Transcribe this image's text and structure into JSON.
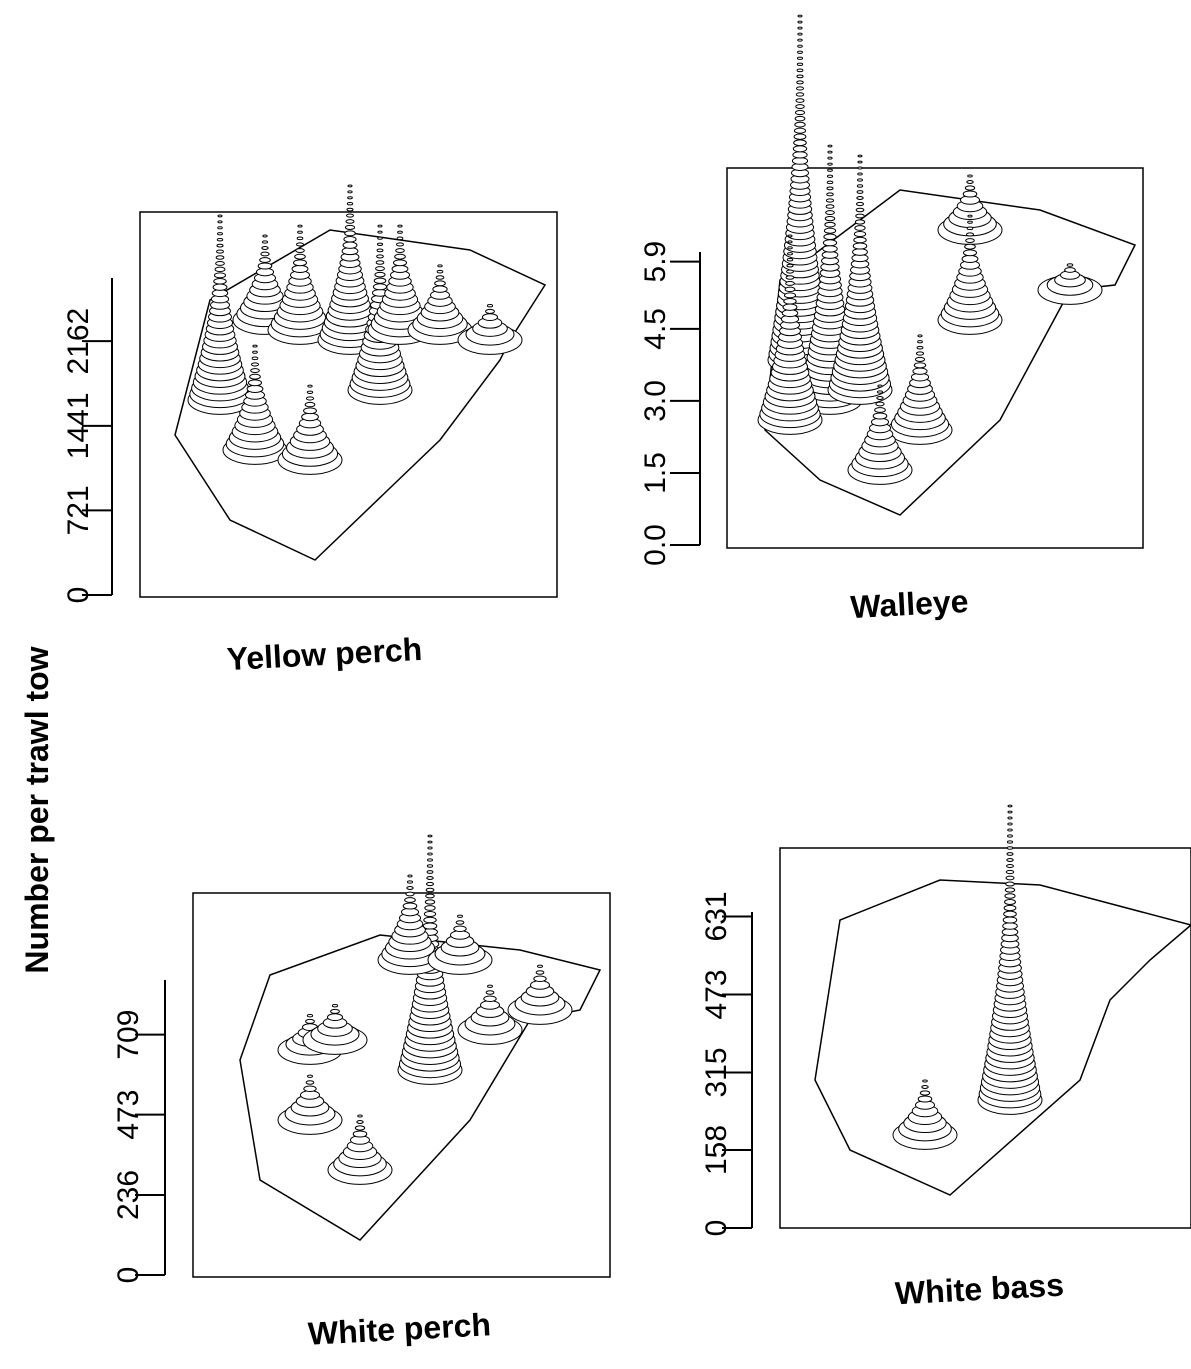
{
  "ylabel": "Number per trawl tow",
  "chart_data": [
    {
      "type": "surface",
      "title": "Yellow perch",
      "ylim": [
        0,
        2700
      ],
      "yticks": [
        0,
        721,
        1441,
        2162
      ]
    },
    {
      "type": "surface",
      "title": "Walleye",
      "ylim": [
        0,
        6.1
      ],
      "yticks": [
        {
          "value": 0,
          "label": "0.0"
        },
        1.5,
        {
          "value": 3,
          "label": "3.0"
        },
        4.5,
        5.9
      ]
    },
    {
      "type": "surface",
      "title": "White perch",
      "ylim": [
        0,
        870
      ],
      "yticks": [
        0,
        236,
        473,
        709
      ]
    },
    {
      "type": "surface",
      "title": "White bass",
      "ylim": [
        0,
        640
      ],
      "yticks": [
        0,
        158,
        315,
        473,
        631
      ]
    }
  ]
}
